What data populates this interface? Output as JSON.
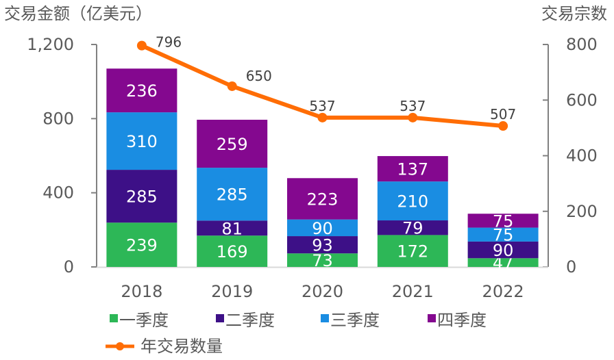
{
  "chart_data": {
    "type": "bar",
    "stacked": true,
    "title": "",
    "ylabel": "交易金额（亿美元）",
    "y2label": "交易宗数",
    "categories": [
      "2018",
      "2019",
      "2020",
      "2021",
      "2022"
    ],
    "ylim": [
      0,
      1200
    ],
    "yticks": [
      0,
      400,
      800,
      1200
    ],
    "ytick_labels": [
      "0",
      "400",
      "800",
      "1,200"
    ],
    "y2lim": [
      0,
      800
    ],
    "y2ticks": [
      0,
      200,
      400,
      600,
      800
    ],
    "y2tick_labels": [
      "0",
      "200",
      "400",
      "600",
      "800"
    ],
    "series": [
      {
        "name": "一季度",
        "color": "#2DB757",
        "values": [
          239,
          169,
          73,
          172,
          47
        ]
      },
      {
        "name": "二季度",
        "color": "#3D1087",
        "values": [
          285,
          81,
          93,
          79,
          90
        ]
      },
      {
        "name": "三季度",
        "color": "#1A8DE2",
        "values": [
          310,
          285,
          90,
          210,
          75
        ]
      },
      {
        "name": "四季度",
        "color": "#84088F",
        "values": [
          236,
          259,
          223,
          137,
          75
        ]
      }
    ],
    "line_series": {
      "name": "年交易数量",
      "color": "#FF6D05",
      "axis": "secondary",
      "values": [
        796,
        650,
        537,
        537,
        507
      ]
    },
    "grid": false,
    "legend_position": "bottom"
  }
}
